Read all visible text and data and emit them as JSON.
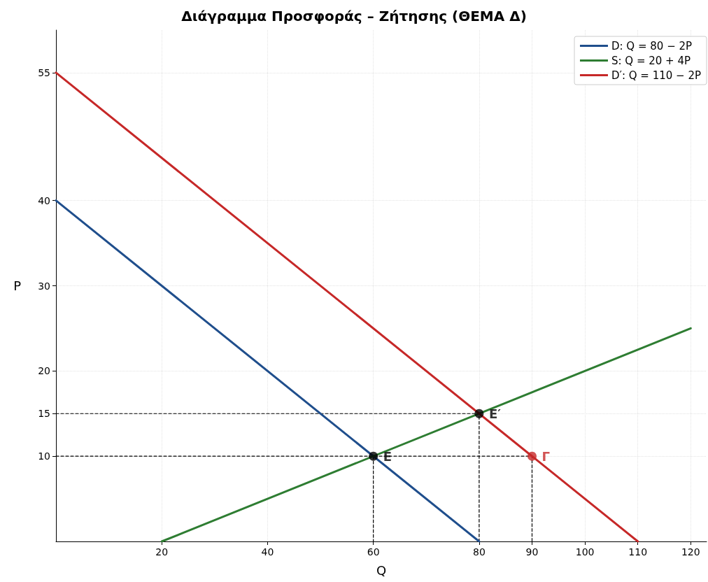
{
  "chart_data": {
    "type": "line",
    "title": "Διάγραμμα Προσφοράς – Ζήτησης (ΘΕΜΑ Δ)",
    "xlabel": "Q",
    "ylabel": "P",
    "xlim": [
      0,
      123
    ],
    "xticks": [
      20,
      40,
      60,
      80,
      90,
      100,
      110,
      120
    ],
    "ylim": [
      0,
      60
    ],
    "yticks": [
      10,
      15,
      20,
      30,
      40,
      55
    ],
    "grid": true,
    "legend": "top right",
    "marker": "none",
    "line_style": "solid",
    "series": [
      {
        "name": "D: Q = 80 − 2P",
        "color": "#1f4e8c",
        "x": [
          0,
          80
        ],
        "values": [
          40,
          0
        ]
      },
      {
        "name": "S: Q = 20 + 4P",
        "color": "#2e7d32",
        "x": [
          20,
          120
        ],
        "values": [
          0,
          25
        ]
      },
      {
        "name": "D′: Q = 110 − 2P",
        "color": "#c62828",
        "x": [
          0,
          110
        ],
        "values": [
          55,
          0
        ]
      },
      {
        "color": "#000000",
        "line_style": "dashed",
        "x": [
          0,
          80,
          80
        ],
        "values": [
          15,
          15,
          0
        ]
      },
      {
        "color": "#000000",
        "line_style": "dashed",
        "x": [
          0,
          90,
          90
        ],
        "values": [
          10,
          10,
          0
        ]
      },
      {
        "color": "#000000",
        "line_style": "dashed",
        "x": [
          60,
          60
        ],
        "values": [
          10,
          0
        ]
      },
      {
        "type": "scatter",
        "marker": "circle",
        "x": [
          60,
          80,
          90
        ],
        "values": [
          10,
          15,
          10
        ],
        "colors": [
          "#000000",
          "#000000",
          "#c62828"
        ]
      }
    ],
    "annotations": [
      {
        "text": "E",
        "x": 60,
        "y": 10
      },
      {
        "text": "E′",
        "x": 80,
        "y": 15
      },
      {
        "text": "Γ",
        "x": 90,
        "y": 10
      }
    ]
  }
}
